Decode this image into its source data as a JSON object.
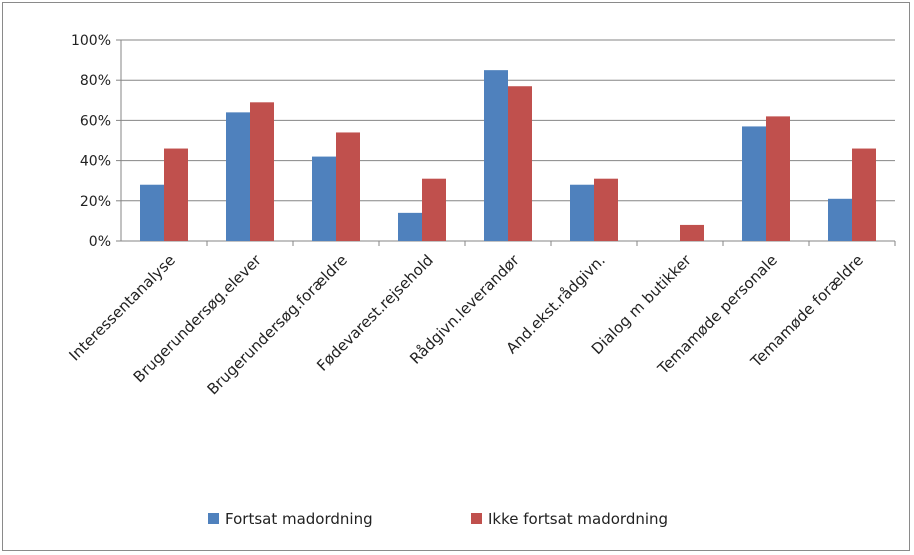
{
  "chart_data": {
    "type": "bar",
    "title": "",
    "xlabel": "",
    "ylabel": "",
    "ylim": [
      0,
      100
    ],
    "y_ticks": [
      "0%",
      "20%",
      "40%",
      "60%",
      "80%",
      "100%"
    ],
    "y_tick_values": [
      0,
      20,
      40,
      60,
      80,
      100
    ],
    "grid": true,
    "legend_position": "bottom",
    "categories": [
      "Interessentanalyse",
      "Brugerundersøg.elever",
      "Brugerundersøg.forældre",
      "Fødevarest.rejsehold",
      "Rådgivn.leverandør",
      "And.ekst.rådgivn.",
      "Dialog m butikker",
      "Temamøde personale",
      "Temamøde forældre"
    ],
    "series": [
      {
        "name": "Fortsat madordning",
        "color": "#4f81bd",
        "values": [
          28,
          64,
          42,
          14,
          85,
          28,
          0,
          57,
          21
        ]
      },
      {
        "name": "Ikke fortsat madordning",
        "color": "#c0504d",
        "values": [
          46,
          69,
          54,
          31,
          77,
          31,
          8,
          62,
          46
        ]
      }
    ]
  }
}
